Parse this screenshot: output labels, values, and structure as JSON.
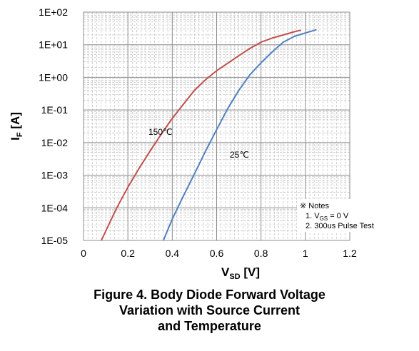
{
  "chart_data": {
    "type": "line",
    "title": "",
    "xlabel": {
      "main": "V",
      "sub": "SD",
      "unit": " [V]"
    },
    "ylabel": {
      "main": "I",
      "sub": "F",
      "unit": " [A]"
    },
    "xlim": [
      0,
      1.2
    ],
    "ylim": [
      1e-05,
      100
    ],
    "yscale": "log",
    "grid": true,
    "x_ticks": [
      "0",
      "0.2",
      "0.4",
      "0.6",
      "0.8",
      "1",
      "1.2"
    ],
    "y_ticks": [
      "1E-05",
      "1E-04",
      "1E-03",
      "1E-02",
      "1E-01",
      "1E+00",
      "1E+01",
      "1E+02"
    ],
    "series": [
      {
        "name": "150℃",
        "color": "#c0504d",
        "x": [
          0.08,
          0.15,
          0.2,
          0.25,
          0.3,
          0.35,
          0.4,
          0.45,
          0.5,
          0.55,
          0.6,
          0.65,
          0.7,
          0.75,
          0.8,
          0.85,
          0.9,
          0.95,
          0.98
        ],
        "y": [
          1e-05,
          0.0001,
          0.00043,
          0.0016,
          0.0055,
          0.018,
          0.055,
          0.15,
          0.4,
          0.85,
          1.6,
          2.7,
          4.6,
          7.7,
          12,
          16,
          20,
          25,
          28
        ]
      },
      {
        "name": "25℃",
        "color": "#4f81bd",
        "x": [
          0.36,
          0.4,
          0.45,
          0.5,
          0.55,
          0.6,
          0.65,
          0.7,
          0.75,
          0.8,
          0.85,
          0.9,
          0.95,
          1.0,
          1.05
        ],
        "y": [
          1e-05,
          4.5e-05,
          0.00023,
          0.0011,
          0.0055,
          0.025,
          0.11,
          0.4,
          1.2,
          2.8,
          6,
          12,
          18,
          23,
          29
        ]
      }
    ],
    "notes": {
      "heading": "※ Notes",
      "line1_prefix": "1. V",
      "line1_sub": "GS",
      "line1_suffix": " = 0 V",
      "line2": "2. 300us Pulse Test"
    },
    "caption": [
      "Figure 4. Body Diode Forward Voltage",
      "Variation with Source Current",
      "and Temperature"
    ]
  }
}
